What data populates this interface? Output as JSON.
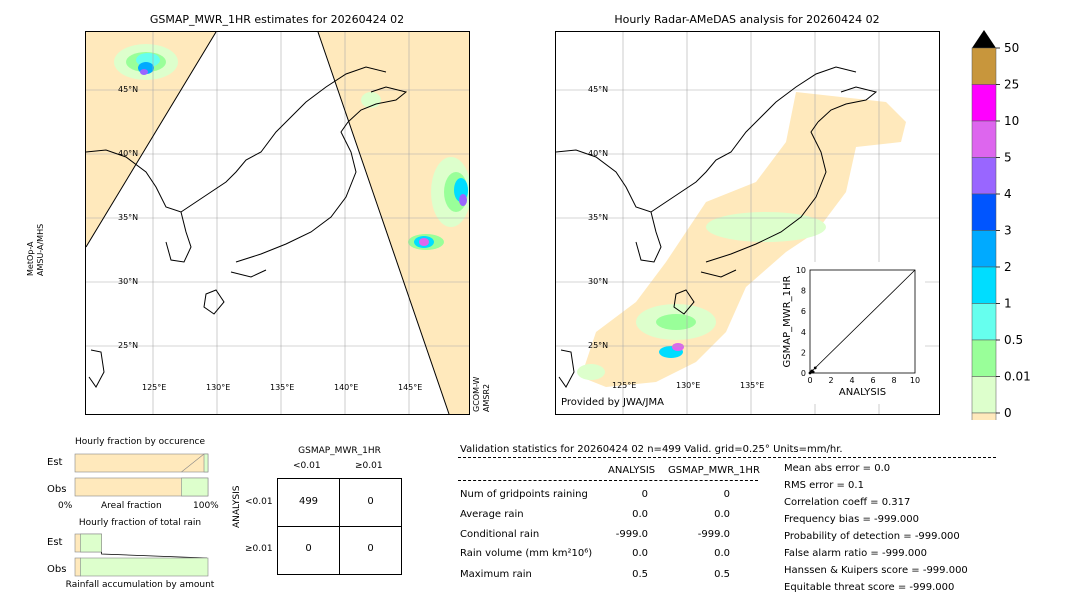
{
  "left_map": {
    "title": "GSMAP_MWR_1HR estimates for 20260424 02",
    "lat_labels": [
      "45°N",
      "40°N",
      "35°N",
      "30°N",
      "25°N"
    ],
    "lon_labels": [
      "125°E",
      "130°E",
      "135°E",
      "140°E",
      "145°E"
    ],
    "sat_left": [
      "MetOp-A",
      "AMSU-A/MHS"
    ],
    "sat_right": [
      "GCOM-W",
      "AMSR2"
    ]
  },
  "right_map": {
    "title": "Hourly Radar-AMeDAS analysis for 20260424 02",
    "lat_labels": [
      "45°N",
      "40°N",
      "35°N",
      "30°N",
      "25°N"
    ],
    "lon_labels": [
      "125°E",
      "130°E",
      "135°E"
    ],
    "credit": "Provided by JWA/JMA"
  },
  "colorbar": {
    "labels": [
      "50",
      "25",
      "10",
      "5",
      "4",
      "3",
      "2",
      "1",
      "0.5",
      "0.01",
      "0"
    ],
    "colors": [
      "#c8963c",
      "#ff00ff",
      "#dd66ee",
      "#9966ff",
      "#0055ff",
      "#00aaff",
      "#00ddff",
      "#66ffee",
      "#99ff99",
      "#ddffcc",
      "#ffe9bc"
    ],
    "over_color": "#000000"
  },
  "chart_data": [
    {
      "type": "scatter",
      "title": "",
      "xlabel": "ANALYSIS",
      "ylabel": "GSMAP_MWR_1HR",
      "xlim": [
        0,
        10
      ],
      "ylim": [
        0,
        10
      ],
      "ticks": [
        "0",
        "2",
        "4",
        "6",
        "8",
        "10"
      ],
      "x": [
        0.0,
        0.1,
        0.2,
        0.3,
        0.5
      ],
      "y": [
        0.0,
        0.1,
        0.2,
        0.1,
        0.5
      ]
    },
    {
      "type": "bar",
      "title": "Hourly fraction by occurence",
      "categories": [
        "Est",
        "Obs"
      ],
      "series": [],
      "est_fraction": 0.97,
      "obs_fraction": 0.8,
      "xlabel": "Areal fraction",
      "x0_label": "0%",
      "x1_label": "100%"
    },
    {
      "type": "bar",
      "title": "Hourly fraction of total rain",
      "categories": [
        "Est",
        "Obs"
      ],
      "est_fraction": 0.2,
      "obs_fraction": 0.04,
      "xlabel": "Rainfall accumulation by amount"
    },
    {
      "type": "table",
      "title": "GSMAP_MWR_1HR",
      "col_headers": [
        "<0.01",
        "≥0.01"
      ],
      "row_axis": "ANALYSIS",
      "row_headers": [
        "<0.01",
        "≥0.01"
      ],
      "cells": [
        [
          "499",
          "0"
        ],
        [
          "0",
          "0"
        ]
      ]
    }
  ],
  "stats": {
    "header": "Validation statistics for 20260424 02  n=499 Valid. grid=0.25° Units=mm/hr.",
    "col_analysis": "ANALYSIS",
    "col_gsmap": "GSMAP_MWR_1HR",
    "rows": [
      {
        "label": "Num of gridpoints raining",
        "a": "0",
        "g": "0"
      },
      {
        "label": "Average rain",
        "a": "0.0",
        "g": "0.0"
      },
      {
        "label": "Conditional rain",
        "a": "-999.0",
        "g": "-999.0"
      },
      {
        "label": "Rain volume (mm km²10⁶)",
        "a": "0.0",
        "g": "0.0"
      },
      {
        "label": "Maximum rain",
        "a": "0.5",
        "g": "0.5"
      }
    ],
    "right": [
      "Mean abs error =    0.0",
      "RMS error =    0.1",
      "Correlation coeff =  0.317",
      "Frequency bias = -999.000",
      "Probability of detection = -999.000",
      "False alarm ratio = -999.000",
      "Hanssen & Kuipers score = -999.000",
      "Equitable threat score = -999.000"
    ]
  }
}
